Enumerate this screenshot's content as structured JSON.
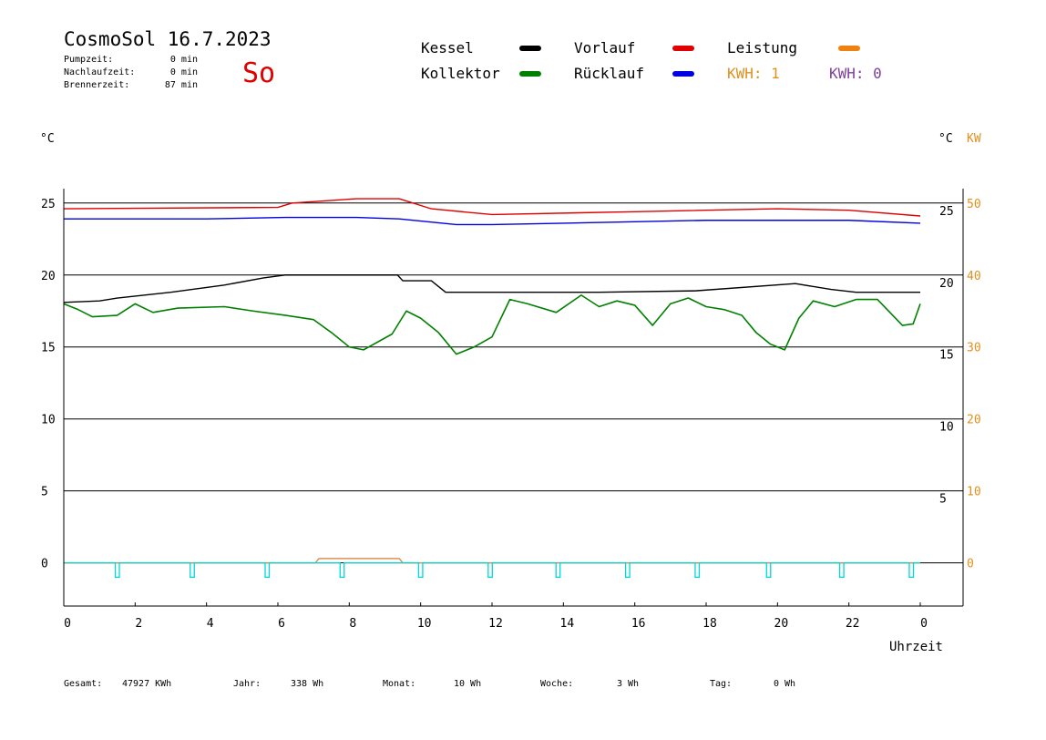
{
  "header": {
    "title": "CosmoSol 16.7.2023",
    "day": "So",
    "times": [
      {
        "label": "Pumpzeit:",
        "value": "0 min"
      },
      {
        "label": "Nachlaufzeit:",
        "value": "0 min"
      },
      {
        "label": "Brennerzeit:",
        "value": "87 min"
      }
    ]
  },
  "legend": [
    {
      "label": "Kessel",
      "color": "#000000"
    },
    {
      "label": "Vorlauf",
      "color": "#e00000"
    },
    {
      "label": "Leistung",
      "color": "#f08010"
    },
    {
      "label": "Kollektor",
      "color": "#008000"
    },
    {
      "label": "Rücklauf",
      "color": "#0000e0"
    }
  ],
  "kwh": [
    {
      "text": "KWH: 1",
      "color": "#e09020"
    },
    {
      "text": "KWH: 0",
      "color": "#8040a0"
    }
  ],
  "axis_units": {
    "left": "°C",
    "right_c": "°C",
    "right_kw": "KW"
  },
  "xlabel": "Uhrzeit",
  "footer": [
    {
      "label": "Gesamt:",
      "value": "47927 KWh"
    },
    {
      "label": "Jahr:",
      "value": "338 Wh"
    },
    {
      "label": "Monat:",
      "value": "10 Wh"
    },
    {
      "label": "Woche:",
      "value": "3 Wh"
    },
    {
      "label": "Tag:",
      "value": "0 Wh"
    }
  ],
  "chart_data": {
    "type": "line",
    "x_unit": "hour",
    "xlim": [
      0,
      24
    ],
    "ylim": [
      -3,
      26
    ],
    "grid": true,
    "x_ticks": [
      "0",
      "2",
      "4",
      "6",
      "8",
      "10",
      "12",
      "14",
      "16",
      "18",
      "20",
      "22",
      "0"
    ],
    "y_ticks_left": [
      0,
      5,
      10,
      15,
      20,
      25
    ],
    "y_ticks_right_c": [
      5,
      10,
      15,
      20,
      25
    ],
    "y_ticks_right_kw": [
      0,
      10,
      20,
      30,
      40,
      50
    ],
    "series": [
      {
        "name": "Vorlauf",
        "color": "#e00000",
        "x": [
          0,
          6,
          6.4,
          8.2,
          9.4,
          10.3,
          12,
          16,
          20,
          22,
          24
        ],
        "y": [
          24.6,
          24.7,
          25.0,
          25.3,
          25.3,
          24.6,
          24.2,
          24.4,
          24.6,
          24.5,
          24.1
        ]
      },
      {
        "name": "Rücklauf",
        "color": "#0000e0",
        "x": [
          0,
          4,
          6.2,
          8.2,
          9.4,
          11,
          12,
          14,
          16,
          18,
          20,
          22,
          24
        ],
        "y": [
          23.9,
          23.9,
          24.0,
          24.0,
          23.9,
          23.5,
          23.5,
          23.6,
          23.7,
          23.8,
          23.8,
          23.8,
          23.6
        ]
      },
      {
        "name": "Kessel",
        "color": "#000000",
        "x": [
          0,
          1,
          1.5,
          3,
          4.5,
          5.6,
          6.2,
          9.35,
          9.5,
          10.3,
          10.7,
          12.5,
          15,
          17.7,
          20.5,
          21.5,
          22.2,
          24
        ],
        "y": [
          18.1,
          18.2,
          18.4,
          18.8,
          19.3,
          19.8,
          20.0,
          20.0,
          19.6,
          19.6,
          18.8,
          18.8,
          18.8,
          18.9,
          19.4,
          19.0,
          18.8,
          18.8
        ]
      },
      {
        "name": "Kollektor",
        "color": "#008000",
        "x": [
          0,
          0.4,
          0.8,
          1.5,
          2,
          2.5,
          3.2,
          4.5,
          5.3,
          6.2,
          7,
          7.5,
          8,
          8.4,
          9.2,
          9.6,
          10,
          10.5,
          11,
          11.5,
          12,
          12.5,
          13,
          13.8,
          14.5,
          15,
          15.5,
          16,
          16.5,
          17,
          17.5,
          18,
          18.5,
          19,
          19.4,
          19.8,
          20.2,
          20.6,
          21,
          21.6,
          22.2,
          22.8,
          23.5,
          23.8,
          24
        ],
        "y": [
          18.0,
          17.6,
          17.1,
          17.2,
          18.0,
          17.4,
          17.7,
          17.8,
          17.5,
          17.2,
          16.9,
          16.0,
          15.0,
          14.8,
          15.9,
          17.5,
          17.0,
          16.0,
          14.5,
          15.0,
          15.7,
          18.3,
          18.0,
          17.4,
          18.6,
          17.8,
          18.2,
          17.9,
          16.5,
          18.0,
          18.4,
          17.8,
          17.6,
          17.2,
          16.0,
          15.2,
          14.8,
          17.0,
          18.2,
          17.8,
          18.3,
          18.3,
          16.5,
          16.6,
          18.0
        ]
      },
      {
        "name": "Leistung",
        "color": "#e09050",
        "x": [
          0,
          7.05,
          7.15,
          9.4,
          9.5,
          24
        ],
        "y": [
          0,
          0,
          0.3,
          0.3,
          0,
          0
        ]
      },
      {
        "name": "Pumpe",
        "color": "#00d8d8",
        "pulses": [
          1.5,
          3.6,
          5.7,
          7.8,
          10,
          11.95,
          13.85,
          15.8,
          17.75,
          19.75,
          21.8,
          23.75
        ],
        "pulse_depth": -1
      }
    ]
  }
}
